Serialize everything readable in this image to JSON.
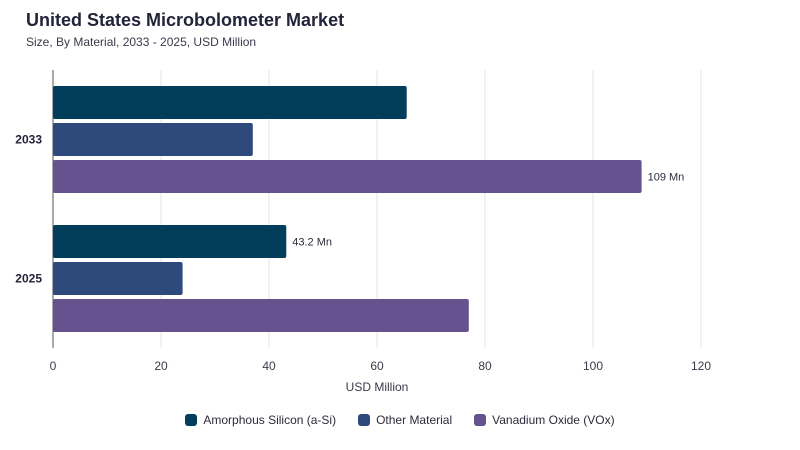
{
  "chart_data": {
    "type": "bar",
    "orientation": "horizontal",
    "title": "United States Microbolometer Market",
    "subtitle": "Size, By Material, 2033 - 2025, USD Million",
    "categories": [
      "2033",
      "2025"
    ],
    "series": [
      {
        "name": "Amorphous Silicon (a-Si)",
        "color": "#033d5c",
        "values": [
          65.5,
          43.2
        ]
      },
      {
        "name": "Other Material",
        "color": "#2e4a7d",
        "values": [
          37,
          24
        ]
      },
      {
        "name": "Vanadium Oxide (VOx)",
        "color": "#66528f",
        "values": [
          109,
          77
        ]
      }
    ],
    "data_labels": [
      {
        "category": "2033",
        "series": "Vanadium Oxide (VOx)",
        "text": "109 Mn"
      },
      {
        "category": "2025",
        "series": "Amorphous Silicon (a-Si)",
        "text": "43.2 Mn"
      }
    ],
    "xlabel": "USD Million",
    "xlim": [
      0,
      120
    ],
    "xticks": [
      0,
      20,
      40,
      60,
      80,
      100,
      120
    ],
    "grid": "vertical",
    "legend": "bottom-center"
  }
}
